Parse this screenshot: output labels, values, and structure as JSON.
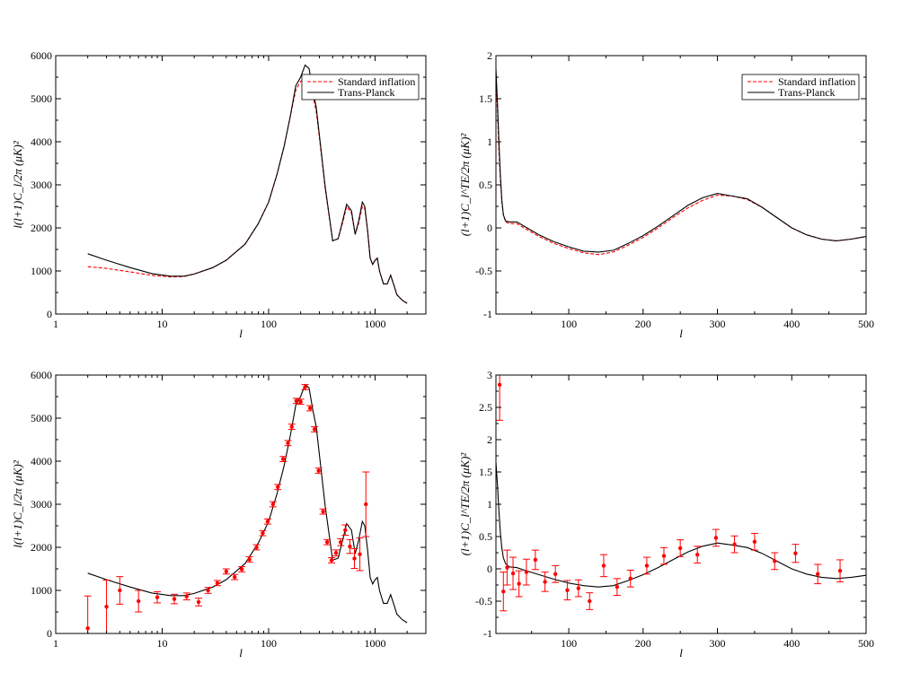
{
  "chart_data": [
    {
      "id": "tt-theory",
      "type": "line",
      "xscale": "log",
      "xlim": [
        1,
        3000
      ],
      "ylim": [
        0,
        6000
      ],
      "xticks": [
        1,
        10,
        100,
        1000
      ],
      "xtick_labels": [
        "1",
        "10",
        "100",
        "1000"
      ],
      "yticks": [
        0,
        1000,
        2000,
        3000,
        4000,
        5000,
        6000
      ],
      "ytick_labels": [
        "0",
        "1000",
        "2000",
        "3000",
        "4000",
        "5000",
        "6000"
      ],
      "xlabel": "l",
      "ylabel": "l(l+1)C_l/2π (μK)²",
      "legend_position": "top-right",
      "series": [
        {
          "name": "Standard inflation",
          "style": "dashed",
          "color": "#ff0000",
          "x": [
            2,
            3,
            5,
            8,
            12,
            16,
            20,
            30,
            40,
            60,
            80,
            100,
            120,
            140,
            160,
            180,
            200,
            220,
            240,
            260,
            280,
            300,
            340,
            400,
            450,
            500,
            540,
            600,
            650,
            700,
            760,
            800,
            850,
            900,
            950,
            1000,
            1050,
            1100,
            1200,
            1300,
            1400,
            1500,
            1600,
            1800,
            2000
          ],
          "values": [
            1100,
            1060,
            980,
            900,
            860,
            870,
            930,
            1080,
            1250,
            1620,
            2100,
            2600,
            3250,
            3900,
            4600,
            5200,
            5400,
            5480,
            5450,
            5100,
            4700,
            4100,
            2900,
            1700,
            1750,
            2150,
            2500,
            2350,
            1850,
            2100,
            2500,
            2450,
            1950,
            1300,
            1150,
            1250,
            1280,
            1000,
            700,
            700,
            900,
            680,
            450,
            320,
            250
          ]
        },
        {
          "name": "Trans-Planck",
          "style": "solid",
          "color": "#000000",
          "x": [
            2,
            3,
            5,
            8,
            12,
            16,
            20,
            30,
            40,
            60,
            80,
            100,
            120,
            140,
            160,
            180,
            200,
            220,
            240,
            260,
            280,
            300,
            340,
            400,
            450,
            500,
            540,
            600,
            650,
            700,
            760,
            800,
            850,
            900,
            950,
            1000,
            1050,
            1100,
            1200,
            1300,
            1400,
            1500,
            1600,
            1800,
            2000
          ],
          "values": [
            1400,
            1250,
            1080,
            940,
            880,
            880,
            930,
            1080,
            1250,
            1620,
            2100,
            2600,
            3250,
            3900,
            4600,
            5300,
            5500,
            5780,
            5700,
            5200,
            4800,
            4150,
            2950,
            1700,
            1750,
            2200,
            2550,
            2400,
            1850,
            2150,
            2600,
            2500,
            1950,
            1300,
            1150,
            1250,
            1300,
            1000,
            700,
            700,
            900,
            680,
            450,
            320,
            250
          ]
        }
      ]
    },
    {
      "id": "te-theory",
      "type": "line",
      "xscale": "linear",
      "xlim": [
        2,
        500
      ],
      "ylim": [
        -1,
        2
      ],
      "xticks": [
        100,
        200,
        300,
        400,
        500
      ],
      "xtick_labels": [
        "100",
        "200",
        "300",
        "400",
        "500"
      ],
      "yticks": [
        -1,
        -0.5,
        0,
        0.5,
        1,
        1.5,
        2
      ],
      "ytick_labels": [
        "-1",
        "-0.5",
        "0",
        "0.5",
        "1",
        "1.5",
        "2"
      ],
      "xlabel": "l",
      "ylabel": "(l+1)C_l^TE/2π (μK)²",
      "legend_position": "top-right",
      "series": [
        {
          "name": "Standard inflation",
          "style": "dashed",
          "color": "#ff0000",
          "x": [
            2,
            4,
            6,
            8,
            10,
            12,
            15,
            20,
            30,
            40,
            60,
            80,
            100,
            120,
            140,
            160,
            180,
            200,
            220,
            240,
            260,
            280,
            300,
            320,
            340,
            360,
            380,
            400,
            420,
            440,
            460,
            480,
            500
          ],
          "values": [
            1.75,
            1.35,
            0.9,
            0.55,
            0.3,
            0.15,
            0.07,
            0.05,
            0.05,
            0.0,
            -0.1,
            -0.18,
            -0.24,
            -0.29,
            -0.31,
            -0.28,
            -0.2,
            -0.11,
            0.0,
            0.12,
            0.23,
            0.32,
            0.38,
            0.37,
            0.33,
            0.24,
            0.12,
            0.0,
            -0.08,
            -0.13,
            -0.15,
            -0.13,
            -0.1
          ]
        },
        {
          "name": "Trans-Planck",
          "style": "solid",
          "color": "#000000",
          "x": [
            2,
            4,
            6,
            8,
            10,
            12,
            15,
            20,
            30,
            40,
            60,
            80,
            100,
            120,
            140,
            160,
            180,
            200,
            220,
            240,
            260,
            280,
            300,
            320,
            340,
            360,
            380,
            400,
            420,
            440,
            460,
            480,
            500
          ],
          "values": [
            1.85,
            1.45,
            1.0,
            0.6,
            0.32,
            0.15,
            0.08,
            0.07,
            0.07,
            0.02,
            -0.08,
            -0.16,
            -0.22,
            -0.27,
            -0.28,
            -0.26,
            -0.18,
            -0.09,
            0.02,
            0.14,
            0.26,
            0.35,
            0.4,
            0.37,
            0.34,
            0.24,
            0.12,
            0.0,
            -0.08,
            -0.13,
            -0.15,
            -0.13,
            -0.1
          ]
        }
      ]
    },
    {
      "id": "tt-data",
      "type": "line",
      "xscale": "log",
      "xlim": [
        1,
        3000
      ],
      "ylim": [
        0,
        6000
      ],
      "xticks": [
        1,
        10,
        100,
        1000
      ],
      "xtick_labels": [
        "1",
        "10",
        "100",
        "1000"
      ],
      "yticks": [
        0,
        1000,
        2000,
        3000,
        4000,
        5000,
        6000
      ],
      "ytick_labels": [
        "0",
        "1000",
        "2000",
        "3000",
        "4000",
        "5000",
        "6000"
      ],
      "xlabel": "l",
      "ylabel": "l(l+1)C_l/2π (μK)²",
      "series": [
        {
          "name": "Trans-Planck",
          "style": "solid",
          "color": "#000000",
          "x": [
            2,
            3,
            5,
            8,
            12,
            16,
            20,
            30,
            40,
            60,
            80,
            100,
            120,
            140,
            160,
            180,
            200,
            220,
            240,
            260,
            280,
            300,
            340,
            400,
            450,
            500,
            540,
            600,
            650,
            700,
            760,
            800,
            850,
            900,
            950,
            1000,
            1050,
            1100,
            1200,
            1300,
            1400,
            1500,
            1600,
            1800,
            2000
          ],
          "values": [
            1400,
            1250,
            1080,
            940,
            880,
            880,
            930,
            1080,
            1250,
            1620,
            2100,
            2600,
            3250,
            3900,
            4600,
            5300,
            5500,
            5780,
            5700,
            5200,
            4800,
            4150,
            2950,
            1700,
            1750,
            2200,
            2550,
            2400,
            1850,
            2150,
            2600,
            2500,
            1950,
            1300,
            1150,
            1250,
            1300,
            1000,
            700,
            700,
            900,
            680,
            450,
            320,
            250
          ]
        }
      ],
      "points": [
        {
          "x": 2,
          "y": 120,
          "err": 750
        },
        {
          "x": 3,
          "y": 620,
          "err": 620
        },
        {
          "x": 4,
          "y": 1000,
          "err": 320
        },
        {
          "x": 6,
          "y": 750,
          "err": 250
        },
        {
          "x": 9,
          "y": 840,
          "err": 130
        },
        {
          "x": 13,
          "y": 800,
          "err": 110
        },
        {
          "x": 17,
          "y": 860,
          "err": 80
        },
        {
          "x": 22,
          "y": 730,
          "err": 90
        },
        {
          "x": 27,
          "y": 1000,
          "err": 70
        },
        {
          "x": 33,
          "y": 1170,
          "err": 60
        },
        {
          "x": 40,
          "y": 1440,
          "err": 60
        },
        {
          "x": 48,
          "y": 1310,
          "err": 60
        },
        {
          "x": 56,
          "y": 1490,
          "err": 60
        },
        {
          "x": 66,
          "y": 1720,
          "err": 60
        },
        {
          "x": 77,
          "y": 2000,
          "err": 60
        },
        {
          "x": 88,
          "y": 2330,
          "err": 60
        },
        {
          "x": 98,
          "y": 2600,
          "err": 60
        },
        {
          "x": 110,
          "y": 3000,
          "err": 60
        },
        {
          "x": 122,
          "y": 3400,
          "err": 60
        },
        {
          "x": 137,
          "y": 4050,
          "err": 60
        },
        {
          "x": 152,
          "y": 4420,
          "err": 60
        },
        {
          "x": 165,
          "y": 4800,
          "err": 60
        },
        {
          "x": 182,
          "y": 5400,
          "err": 60
        },
        {
          "x": 200,
          "y": 5380,
          "err": 60
        },
        {
          "x": 220,
          "y": 5720,
          "err": 60
        },
        {
          "x": 245,
          "y": 5230,
          "err": 60
        },
        {
          "x": 270,
          "y": 4740,
          "err": 60
        },
        {
          "x": 295,
          "y": 3780,
          "err": 60
        },
        {
          "x": 325,
          "y": 2830,
          "err": 60
        },
        {
          "x": 355,
          "y": 2120,
          "err": 60
        },
        {
          "x": 390,
          "y": 1700,
          "err": 60
        },
        {
          "x": 430,
          "y": 1870,
          "err": 70
        },
        {
          "x": 475,
          "y": 2120,
          "err": 80
        },
        {
          "x": 525,
          "y": 2400,
          "err": 120
        },
        {
          "x": 580,
          "y": 2020,
          "err": 160
        },
        {
          "x": 640,
          "y": 1740,
          "err": 230
        },
        {
          "x": 720,
          "y": 1840,
          "err": 380
        },
        {
          "x": 820,
          "y": 3000,
          "err": 750
        }
      ]
    },
    {
      "id": "te-data",
      "type": "line",
      "xscale": "linear",
      "xlim": [
        2,
        500
      ],
      "ylim": [
        -1,
        3
      ],
      "xticks": [
        100,
        200,
        300,
        400,
        500
      ],
      "xtick_labels": [
        "100",
        "200",
        "300",
        "400",
        "500"
      ],
      "yticks": [
        -1,
        -0.5,
        0,
        0.5,
        1,
        1.5,
        2,
        2.5,
        3
      ],
      "ytick_labels": [
        "-1",
        "-0.5",
        "0",
        "0.5",
        "1",
        "1.5",
        "2",
        "2.5",
        "3"
      ],
      "xlabel": "l",
      "ylabel": "(l+1)C_l^TE/2π (μK)²",
      "series": [
        {
          "name": "Trans-Planck",
          "style": "solid",
          "color": "#000000",
          "x": [
            2,
            4,
            6,
            8,
            10,
            12,
            15,
            20,
            30,
            40,
            60,
            80,
            100,
            120,
            140,
            160,
            180,
            200,
            220,
            240,
            260,
            280,
            300,
            320,
            340,
            360,
            380,
            400,
            420,
            440,
            460,
            480,
            500
          ],
          "values": [
            1.65,
            1.3,
            0.9,
            0.55,
            0.32,
            0.17,
            0.08,
            0.03,
            0.02,
            -0.02,
            -0.09,
            -0.16,
            -0.22,
            -0.26,
            -0.28,
            -0.26,
            -0.18,
            -0.09,
            0.02,
            0.14,
            0.26,
            0.35,
            0.4,
            0.37,
            0.33,
            0.24,
            0.12,
            0.0,
            -0.08,
            -0.13,
            -0.15,
            -0.13,
            -0.1
          ]
        }
      ],
      "points": [
        {
          "x": 7,
          "y": 2.85,
          "err": 0.55
        },
        {
          "x": 12,
          "y": -0.35,
          "err": 0.3
        },
        {
          "x": 17,
          "y": 0.02,
          "err": 0.27
        },
        {
          "x": 25,
          "y": -0.07,
          "err": 0.25
        },
        {
          "x": 33,
          "y": -0.23,
          "err": 0.2
        },
        {
          "x": 43,
          "y": -0.05,
          "err": 0.2
        },
        {
          "x": 55,
          "y": 0.14,
          "err": 0.15
        },
        {
          "x": 68,
          "y": -0.2,
          "err": 0.15
        },
        {
          "x": 82,
          "y": -0.08,
          "err": 0.13
        },
        {
          "x": 98,
          "y": -0.33,
          "err": 0.15
        },
        {
          "x": 113,
          "y": -0.3,
          "err": 0.13
        },
        {
          "x": 128,
          "y": -0.5,
          "err": 0.13
        },
        {
          "x": 147,
          "y": 0.05,
          "err": 0.17
        },
        {
          "x": 165,
          "y": -0.28,
          "err": 0.13
        },
        {
          "x": 183,
          "y": -0.15,
          "err": 0.13
        },
        {
          "x": 205,
          "y": 0.05,
          "err": 0.13
        },
        {
          "x": 228,
          "y": 0.2,
          "err": 0.13
        },
        {
          "x": 250,
          "y": 0.32,
          "err": 0.13
        },
        {
          "x": 273,
          "y": 0.22,
          "err": 0.13
        },
        {
          "x": 298,
          "y": 0.48,
          "err": 0.13
        },
        {
          "x": 323,
          "y": 0.38,
          "err": 0.13
        },
        {
          "x": 350,
          "y": 0.42,
          "err": 0.13
        },
        {
          "x": 377,
          "y": 0.12,
          "err": 0.13
        },
        {
          "x": 405,
          "y": 0.24,
          "err": 0.14
        },
        {
          "x": 435,
          "y": -0.08,
          "err": 0.15
        },
        {
          "x": 465,
          "y": -0.03,
          "err": 0.17
        }
      ]
    }
  ]
}
